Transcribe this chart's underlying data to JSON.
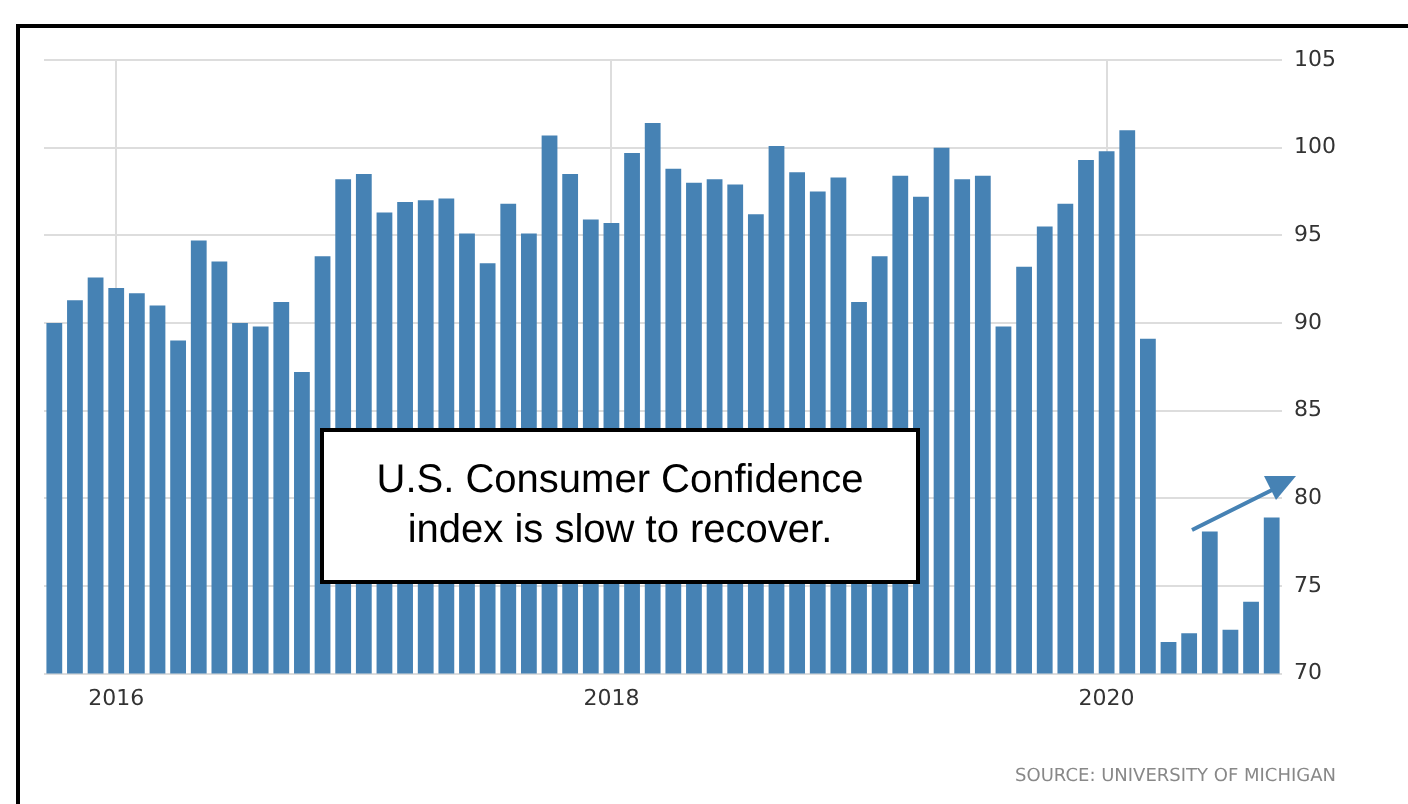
{
  "chart_data": {
    "type": "bar",
    "categories": [
      null,
      null,
      null,
      "2016",
      null,
      null,
      null,
      null,
      null,
      null,
      null,
      null,
      null,
      null,
      null,
      null,
      null,
      null,
      null,
      null,
      null,
      null,
      null,
      null,
      null,
      null,
      null,
      "2018",
      null,
      null,
      null,
      null,
      null,
      null,
      null,
      null,
      null,
      null,
      null,
      null,
      null,
      null,
      null,
      null,
      null,
      null,
      null,
      null,
      null,
      null,
      null,
      "2020",
      null,
      null,
      null,
      null,
      null,
      null,
      null,
      null
    ],
    "values": [
      90.0,
      91.3,
      92.6,
      92.0,
      91.7,
      91.0,
      89.0,
      94.7,
      93.5,
      90.0,
      89.8,
      91.2,
      87.2,
      93.8,
      98.2,
      98.5,
      96.3,
      96.9,
      97.0,
      97.1,
      95.1,
      93.4,
      96.8,
      95.1,
      100.7,
      98.5,
      95.9,
      95.7,
      99.7,
      101.4,
      98.8,
      98.0,
      98.2,
      97.9,
      96.2,
      100.1,
      98.6,
      97.5,
      98.3,
      91.2,
      93.8,
      98.4,
      97.2,
      100.0,
      98.2,
      98.4,
      89.8,
      93.2,
      95.5,
      96.8,
      99.3,
      99.8,
      101.0,
      89.1,
      71.8,
      72.3,
      78.1,
      72.5,
      74.1,
      78.9
    ],
    "color": "#4682b4",
    "ylim": [
      70,
      105
    ],
    "yticks": [
      70,
      75,
      80,
      85,
      90,
      95,
      100,
      105
    ],
    "grid": true,
    "legend": false,
    "annotations": [
      "U.S. Consumer Confidence index is slow to recover.",
      "SOURCE: UNIVERSITY OF MICHIGAN"
    ]
  }
}
